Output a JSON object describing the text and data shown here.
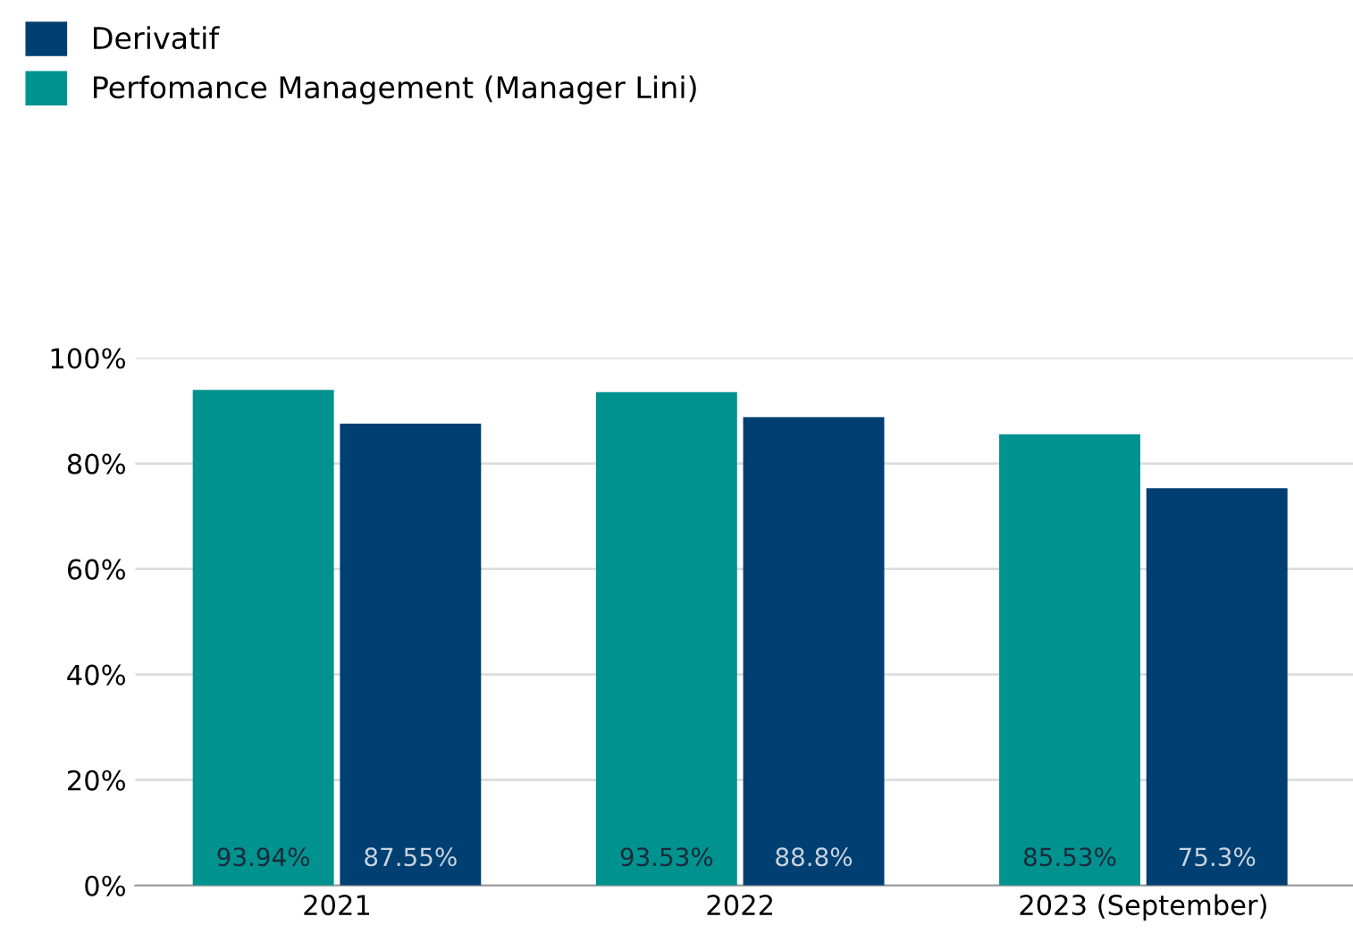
{
  "chart_data": {
    "type": "bar",
    "categories": [
      "2021",
      "2022",
      "2023 (September)"
    ],
    "series": [
      {
        "name": "Perfomance Management (Manager Lini)",
        "color": "#00928f",
        "values": [
          93.94,
          93.53,
          85.53
        ],
        "value_labels": [
          "93.94%",
          "93.53%",
          "85.53%"
        ]
      },
      {
        "name": "Derivatif",
        "color": "#003f72",
        "values": [
          87.55,
          88.8,
          75.3
        ],
        "value_labels": [
          "87.55%",
          "88.8%",
          "75.3%"
        ]
      }
    ],
    "ylim": [
      0,
      100
    ],
    "yticks": [
      {
        "value": 0,
        "label": "0%"
      },
      {
        "value": 20,
        "label": "20%"
      },
      {
        "value": 40,
        "label": "40%"
      },
      {
        "value": 60,
        "label": "60%"
      },
      {
        "value": 80,
        "label": "80%"
      },
      {
        "value": 100,
        "label": "100%"
      }
    ],
    "grid": "y",
    "legend": "top left"
  }
}
